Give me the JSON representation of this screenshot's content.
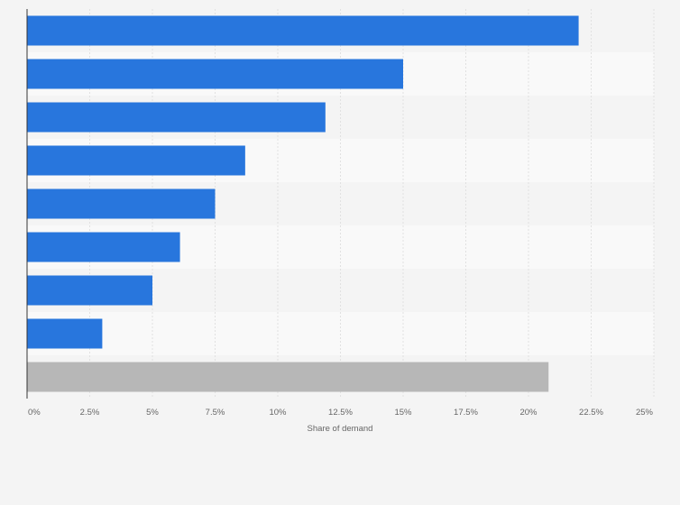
{
  "chart_data": {
    "type": "bar",
    "orientation": "horizontal",
    "title": "",
    "categories": [
      "",
      "",
      "",
      "",
      "",
      "",
      "",
      "",
      ""
    ],
    "values": [
      22.0,
      15.0,
      11.9,
      8.7,
      7.5,
      6.1,
      5.0,
      3.0,
      20.8
    ],
    "colors": [
      "#2876dd",
      "#2876dd",
      "#2876dd",
      "#2876dd",
      "#2876dd",
      "#2876dd",
      "#2876dd",
      "#2876dd",
      "#b7b7b7"
    ],
    "xlabel": "Share of demand",
    "ylabel": "",
    "xlim": [
      0,
      25
    ],
    "xticks": [
      0,
      2.5,
      5,
      7.5,
      10,
      12.5,
      15,
      17.5,
      20,
      22.5,
      25
    ],
    "xtick_labels": [
      "0%",
      "2.5%",
      "5%",
      "7.5%",
      "10%",
      "12.5%",
      "15%",
      "17.5%",
      "20%",
      "22.5%",
      "25%"
    ],
    "grid": true
  },
  "colors": {
    "bar": "#2876dd",
    "other_bar": "#b7b7b7",
    "background": "#f4f4f4",
    "stripe_light": "#f9f9f9",
    "stripe_dark": "#f4f4f4",
    "grid": "#e1e1e1",
    "axis": "#333333",
    "text": "#666666"
  }
}
